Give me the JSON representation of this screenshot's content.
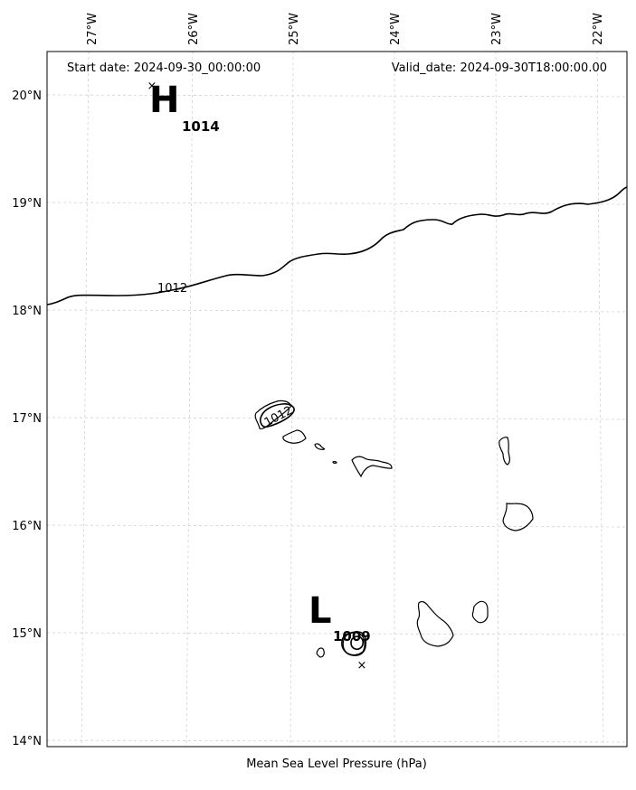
{
  "map": {
    "start_date_text": "Start date: 2024-09-30_00:00:00",
    "valid_date_text": "Valid_date: 2024-09-30T18:00:00.00",
    "caption": "Mean Sea Level Pressure (hPa)",
    "lon_labels": [
      "27°W",
      "26°W",
      "25°W",
      "24°W",
      "23°W",
      "22°W"
    ],
    "lat_labels": [
      "20°N",
      "19°N",
      "18°N",
      "17°N",
      "16°N",
      "15°N",
      "14°N"
    ],
    "high": {
      "symbol": "H",
      "value": "1014"
    },
    "low": {
      "symbol": "L",
      "value": "1009"
    },
    "contour_labels": [
      "1012",
      "1012"
    ],
    "center_marker": "×"
  }
}
